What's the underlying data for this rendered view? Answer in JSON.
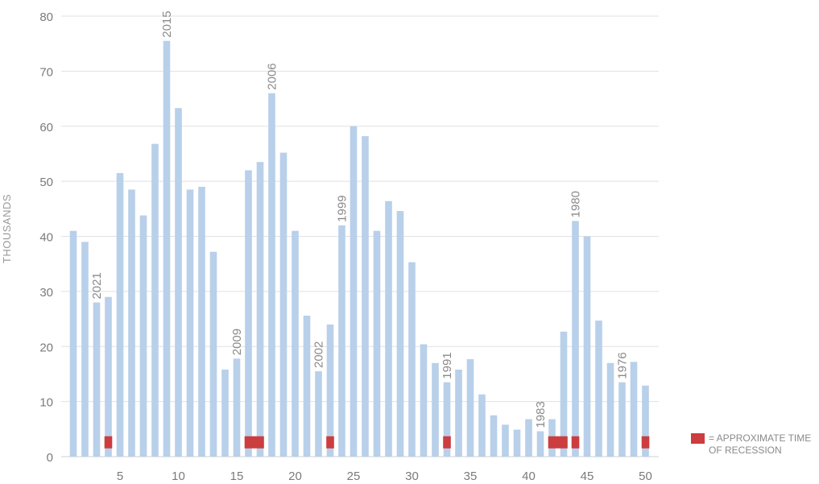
{
  "chart_data": {
    "type": "bar",
    "ylabel": "THOUSANDS",
    "xlabel": "",
    "ylim": [
      0,
      80
    ],
    "yticks": [
      0,
      10,
      20,
      30,
      40,
      50,
      60,
      70,
      80
    ],
    "xticks": [
      5,
      10,
      15,
      20,
      25,
      30,
      35,
      40,
      45,
      50
    ],
    "grid": true,
    "x": [
      1,
      2,
      3,
      4,
      5,
      6,
      7,
      8,
      9,
      10,
      11,
      12,
      13,
      14,
      15,
      16,
      17,
      18,
      19,
      20,
      21,
      22,
      23,
      24,
      25,
      26,
      27,
      28,
      29,
      30,
      31,
      32,
      33,
      34,
      35,
      36,
      37,
      38,
      39,
      40,
      41,
      42,
      43,
      44,
      45,
      46,
      47,
      48,
      49,
      50
    ],
    "values": [
      41,
      39,
      28,
      29,
      51.5,
      48.5,
      43.8,
      56.8,
      75.5,
      63.3,
      48.5,
      49,
      37.2,
      15.8,
      17.8,
      52,
      53.5,
      66,
      55.2,
      41,
      25.6,
      15.5,
      24,
      42,
      60,
      58.2,
      41,
      46.4,
      44.6,
      35.3,
      20.4,
      17,
      13.5,
      15.8,
      17.7,
      11.3,
      7.5,
      5.8,
      4.9,
      6.8,
      4.6,
      6.8,
      22.7,
      42.8,
      40,
      24.7,
      17,
      13.5,
      17.2,
      12.9
    ],
    "bar_color": "#b8d0ea",
    "annotations": [
      {
        "x": 3,
        "label": "2021"
      },
      {
        "x": 9,
        "label": "2015"
      },
      {
        "x": 15,
        "label": "2009"
      },
      {
        "x": 18,
        "label": "2006"
      },
      {
        "x": 22,
        "label": "2002"
      },
      {
        "x": 24,
        "label": "1999"
      },
      {
        "x": 33,
        "label": "1991"
      },
      {
        "x": 41,
        "label": "1983"
      },
      {
        "x": 44,
        "label": "1980"
      },
      {
        "x": 48,
        "label": "1976"
      }
    ],
    "recession_periods": [
      [
        4,
        4
      ],
      [
        16,
        17
      ],
      [
        23,
        23
      ],
      [
        33,
        33
      ],
      [
        42,
        43
      ],
      [
        44,
        44
      ],
      [
        50,
        50
      ]
    ],
    "recession_color": "#cc3d3f",
    "legend": {
      "label": "= APPROXIMATE TIME OF RECESSION",
      "placement": "bottom-right"
    }
  }
}
